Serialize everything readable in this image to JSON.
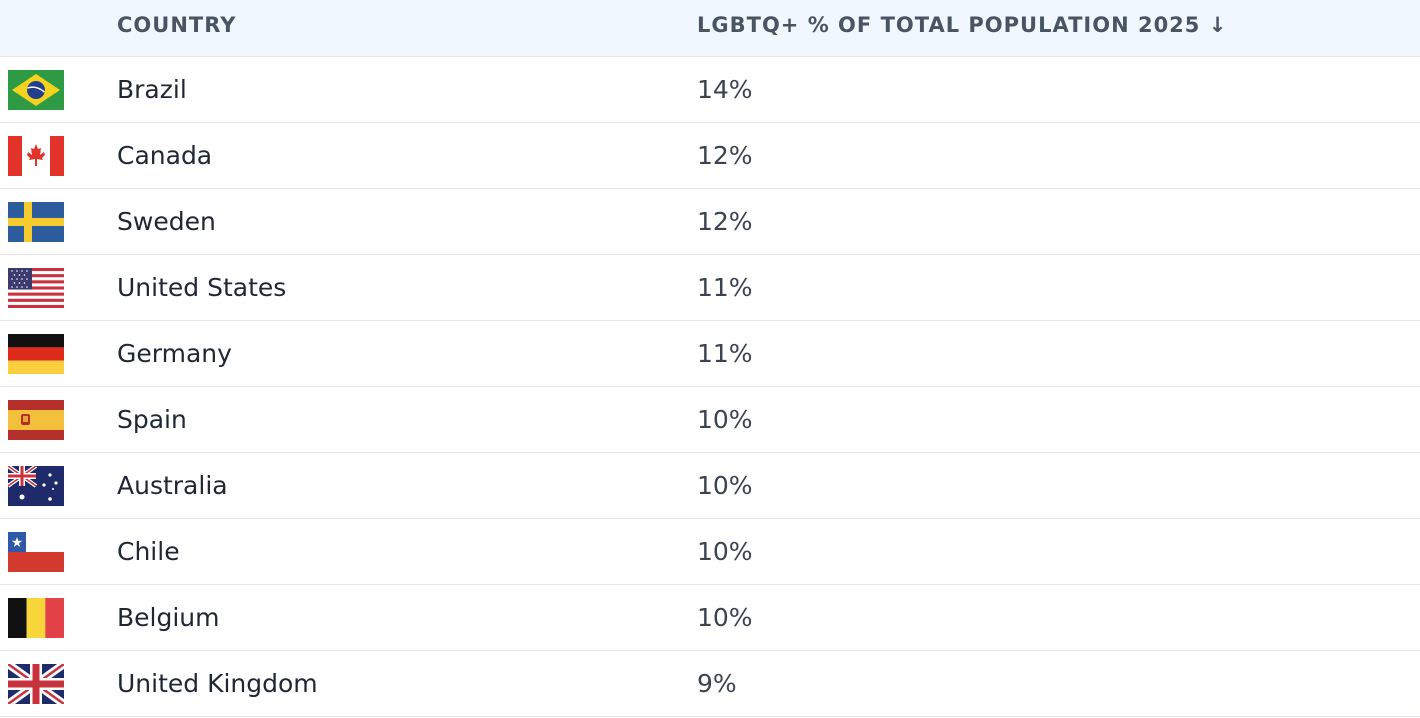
{
  "table": {
    "header": [
      "COUNTRY",
      "LGBTQ+ % OF TOTAL POPULATION 2025 ↓"
    ],
    "rows": [
      [
        "Brazil",
        "14%"
      ],
      [
        "Canada",
        "12%"
      ],
      [
        "Sweden",
        "12%"
      ],
      [
        "United States",
        "11%"
      ],
      [
        "Germany",
        "11%"
      ],
      [
        "Spain",
        "10%"
      ],
      [
        "Australia",
        "10%"
      ],
      [
        "Chile",
        "10%"
      ],
      [
        "Belgium",
        "10%"
      ],
      [
        "United Kingdom",
        "9%"
      ]
    ]
  }
}
